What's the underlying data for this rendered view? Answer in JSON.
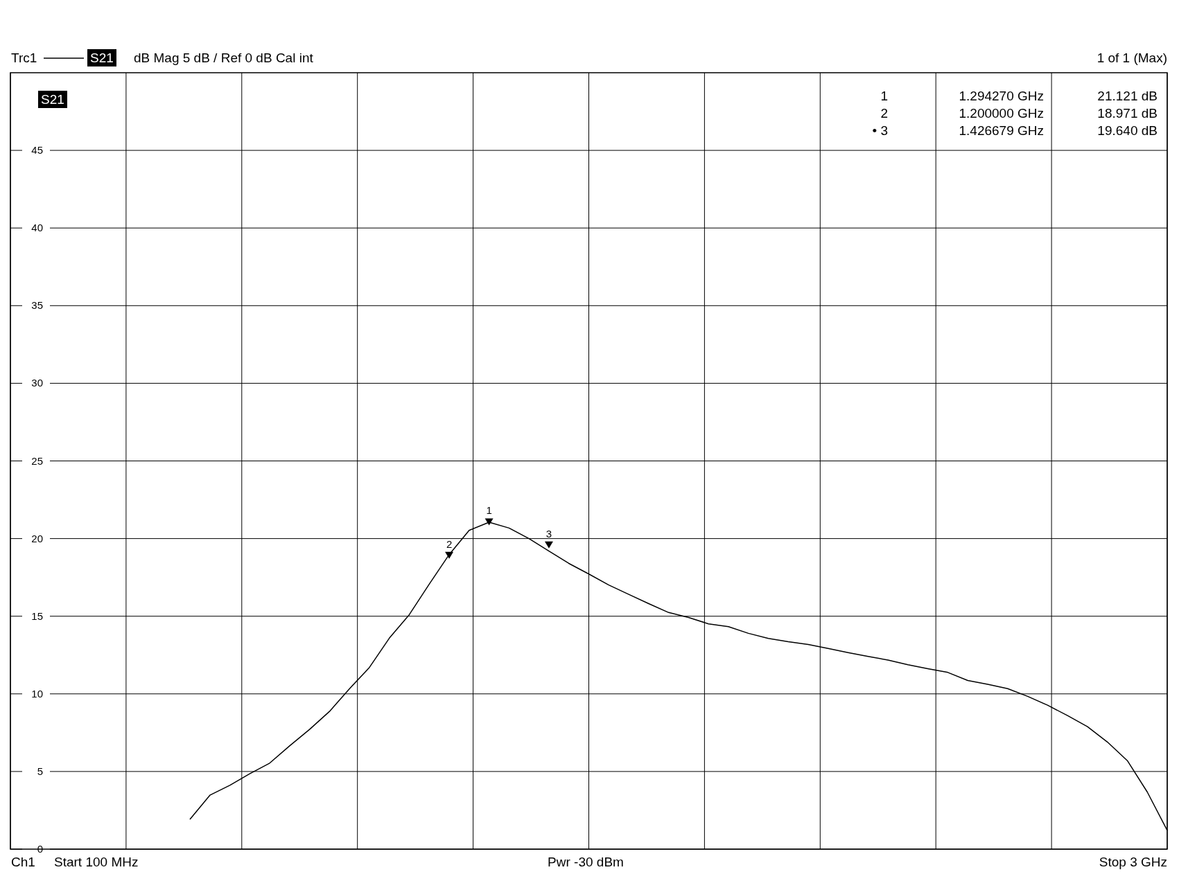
{
  "chart_data": {
    "type": "line",
    "title": "dB Mag  5 dB /  Ref 0 dB     Cal int",
    "categories": [
      null,
      null,
      null,
      null,
      null,
      null,
      null,
      null,
      null,
      null,
      null,
      null,
      null,
      null,
      null,
      null,
      null,
      null,
      null,
      null,
      null,
      null,
      null,
      null,
      null,
      null,
      null,
      null,
      null,
      null,
      null,
      null,
      null,
      null,
      null,
      null,
      null,
      null,
      null,
      null,
      null,
      null,
      null,
      null,
      null,
      null,
      null,
      null,
      null,
      null,
      null,
      null,
      null,
      null,
      null,
      null,
      null,
      null,
      null
    ],
    "ylim": [
      0,
      50
    ],
    "yticks": [
      0,
      5,
      10,
      15,
      20,
      25,
      30,
      35,
      40,
      45
    ],
    "grid": true,
    "tick_labels": "y",
    "legend": "top left",
    "series": [
      {
        "name": "S21",
        "type": "line",
        "color": "#000000",
        "values": [
          null,
          null,
          null,
          null,
          null,
          null,
          null,
          null,
          null,
          1.92,
          3.47,
          4.11,
          4.86,
          5.54,
          6.65,
          7.71,
          8.87,
          10.33,
          11.7,
          13.59,
          15.1,
          17.07,
          18.97,
          20.53,
          21.05,
          20.68,
          20.0,
          19.2,
          18.4,
          17.72,
          17.01,
          16.41,
          15.81,
          15.24,
          14.92,
          14.51,
          14.33,
          13.9,
          13.57,
          13.36,
          13.18,
          12.92,
          12.66,
          12.41,
          12.18,
          11.88,
          11.62,
          11.38,
          10.86,
          10.62,
          10.34,
          9.84,
          9.27,
          8.6,
          7.89,
          6.9,
          5.7,
          3.68,
          1.21
        ]
      },
      {
        "name": "1",
        "type": "scatter",
        "marker": "triangle",
        "color": "#000000",
        "values": [
          null,
          null,
          null,
          null,
          null,
          null,
          null,
          null,
          null,
          null,
          null,
          null,
          null,
          null,
          null,
          null,
          null,
          null,
          null,
          null,
          null,
          null,
          null,
          null,
          21.121,
          null,
          null,
          null,
          null,
          null,
          null,
          null,
          null,
          null,
          null,
          null,
          null,
          null,
          null,
          null,
          null,
          null,
          null,
          null,
          null,
          null,
          null,
          null,
          null,
          null,
          null,
          null,
          null,
          null,
          null,
          null,
          null,
          null,
          null
        ]
      },
      {
        "name": "2",
        "type": "scatter",
        "marker": "triangle",
        "color": "#000000",
        "values": [
          null,
          null,
          null,
          null,
          null,
          null,
          null,
          null,
          null,
          null,
          null,
          null,
          null,
          null,
          null,
          null,
          null,
          null,
          null,
          null,
          null,
          null,
          18.971,
          null,
          null,
          null,
          null,
          null,
          null,
          null,
          null,
          null,
          null,
          null,
          null,
          null,
          null,
          null,
          null,
          null,
          null,
          null,
          null,
          null,
          null,
          null,
          null,
          null,
          null,
          null,
          null,
          null,
          null,
          null,
          null,
          null,
          null,
          null,
          null
        ]
      },
      {
        "name": "3",
        "type": "scatter",
        "marker": "triangle",
        "color": "#000000",
        "values": [
          null,
          null,
          null,
          null,
          null,
          null,
          null,
          null,
          null,
          null,
          null,
          null,
          null,
          null,
          null,
          null,
          null,
          null,
          null,
          null,
          null,
          null,
          null,
          null,
          null,
          null,
          null,
          19.64,
          null,
          null,
          null,
          null,
          null,
          null,
          null,
          null,
          null,
          null,
          null,
          null,
          null,
          null,
          null,
          null,
          null,
          null,
          null,
          null,
          null,
          null,
          null,
          null,
          null,
          null,
          null,
          null,
          null,
          null,
          null
        ]
      }
    ],
    "annotations": [
      "Trc1",
      "S21",
      "1 of 1 (Max)",
      "Ch1",
      "Start  100 MHz",
      "Pwr  -30 dBm",
      "Stop  3 GHz",
      "1",
      "1.294270  GHz",
      "21.121   dB",
      "2",
      "1.200000  GHz",
      "18.971   dB",
      "• 3",
      "1.426679  GHz",
      "19.640   dB"
    ]
  }
}
